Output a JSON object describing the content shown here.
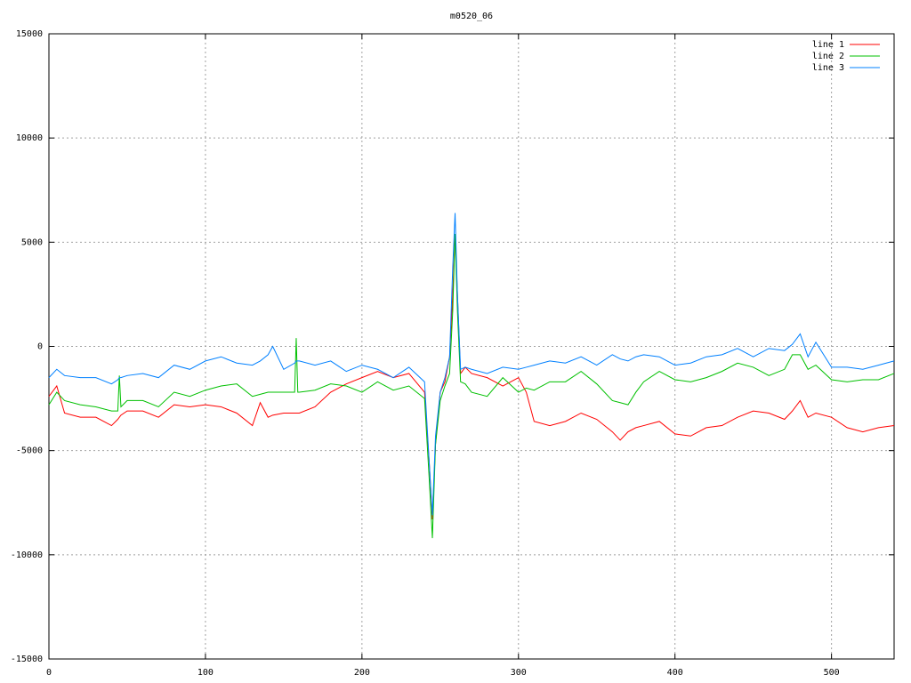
{
  "chart_data": {
    "type": "line",
    "title": "m0520_06",
    "x": [
      0,
      5,
      10,
      20,
      30,
      40,
      44,
      45,
      46,
      50,
      60,
      70,
      80,
      90,
      100,
      110,
      120,
      130,
      135,
      140,
      143,
      150,
      157,
      158,
      159,
      160,
      170,
      180,
      190,
      200,
      210,
      220,
      230,
      240,
      243,
      245,
      247,
      250,
      253,
      256,
      258,
      259.5,
      261,
      263,
      266,
      270,
      280,
      290,
      300,
      305,
      310,
      320,
      330,
      340,
      350,
      360,
      365,
      370,
      375,
      380,
      390,
      400,
      410,
      420,
      430,
      440,
      450,
      460,
      470,
      475,
      480,
      485,
      490,
      500,
      510,
      520,
      530,
      540
    ],
    "series": [
      {
        "name": "line 1",
        "color": "#ff0000",
        "values": [
          -2400,
          -1900,
          -3200,
          -3400,
          -3400,
          -3800,
          -3500,
          -3400,
          -3300,
          -3100,
          -3100,
          -3400,
          -2800,
          -2900,
          -2800,
          -2900,
          -3200,
          -3800,
          -2700,
          -3400,
          -3300,
          -3200,
          -3200,
          -3200,
          -3200,
          -3200,
          -2900,
          -2200,
          -1800,
          -1500,
          -1200,
          -1500,
          -1300,
          -2200,
          -5600,
          -8300,
          -4700,
          -2200,
          -1700,
          -500,
          2500,
          5400,
          2500,
          -1300,
          -1000,
          -1300,
          -1500,
          -1900,
          -1500,
          -2200,
          -3600,
          -3800,
          -3600,
          -3200,
          -3500,
          -4100,
          -4500,
          -4100,
          -3900,
          -3800,
          -3600,
          -4200,
          -4300,
          -3900,
          -3800,
          -3400,
          -3100,
          -3200,
          -3500,
          -3100,
          -2600,
          -3400,
          -3200,
          -3400,
          -3900,
          -4100,
          -3900,
          -3800
        ]
      },
      {
        "name": "line 2",
        "color": "#00c000",
        "values": [
          -2800,
          -2200,
          -2600,
          -2800,
          -2900,
          -3100,
          -3100,
          -1400,
          -2900,
          -2600,
          -2600,
          -2900,
          -2200,
          -2400,
          -2100,
          -1900,
          -1800,
          -2400,
          -2300,
          -2200,
          -2200,
          -2200,
          -2200,
          400,
          -2200,
          -2200,
          -2100,
          -1800,
          -1900,
          -2200,
          -1700,
          -2100,
          -1900,
          -2500,
          -6400,
          -9200,
          -4700,
          -2600,
          -1900,
          -1300,
          1700,
          5400,
          1700,
          -1700,
          -1800,
          -2200,
          -2400,
          -1500,
          -2200,
          -2000,
          -2100,
          -1700,
          -1700,
          -1200,
          -1800,
          -2600,
          -2700,
          -2800,
          -2200,
          -1700,
          -1200,
          -1600,
          -1700,
          -1500,
          -1200,
          -800,
          -1000,
          -1400,
          -1100,
          -400,
          -400,
          -1100,
          -900,
          -1600,
          -1700,
          -1600,
          -1600,
          -1300
        ]
      },
      {
        "name": "line 3",
        "color": "#0080ff",
        "values": [
          -1500,
          -1100,
          -1400,
          -1500,
          -1500,
          -1800,
          -1600,
          -1500,
          -1500,
          -1400,
          -1300,
          -1500,
          -900,
          -1100,
          -700,
          -500,
          -800,
          -900,
          -700,
          -400,
          0,
          -1100,
          -800,
          -700,
          -700,
          -700,
          -900,
          -700,
          -1200,
          -900,
          -1100,
          -1500,
          -1000,
          -1700,
          -5600,
          -8100,
          -4300,
          -2200,
          -1500,
          -500,
          3800,
          6400,
          2500,
          -1100,
          -1000,
          -1100,
          -1300,
          -1000,
          -1100,
          -1000,
          -900,
          -700,
          -800,
          -500,
          -900,
          -400,
          -600,
          -700,
          -500,
          -400,
          -500,
          -900,
          -800,
          -500,
          -400,
          -100,
          -500,
          -100,
          -200,
          100,
          600,
          -500,
          200,
          -1000,
          -1000,
          -1100,
          -900,
          -700
        ]
      }
    ],
    "xlim": [
      0,
      540
    ],
    "ylim": [
      -15000,
      15000
    ],
    "xticks": [
      0,
      100,
      200,
      300,
      400,
      500
    ],
    "yticks": [
      -15000,
      -10000,
      -5000,
      0,
      5000,
      10000,
      15000
    ],
    "grid": true,
    "legend": "top-right"
  }
}
